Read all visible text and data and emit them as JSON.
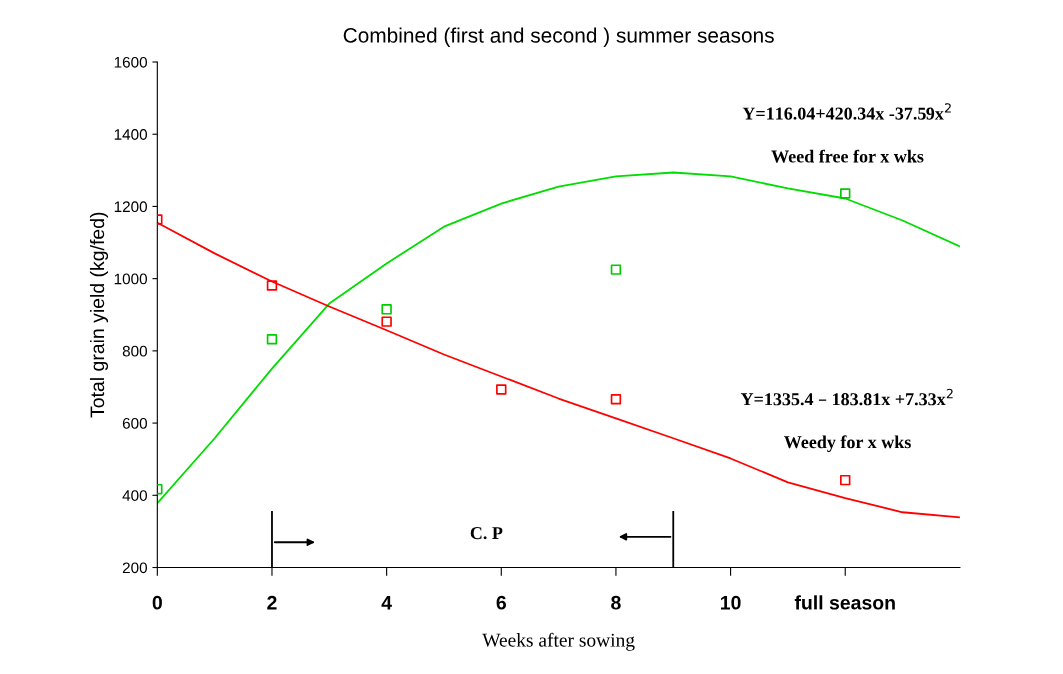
{
  "chart_data": {
    "type": "line",
    "title": "Combined (first and second ) summer seasons",
    "xlabel": "Weeks after sowing",
    "ylabel": "Total grain yield (kg/fed)",
    "xlim": [
      0,
      14
    ],
    "ylim": [
      200,
      1600
    ],
    "xticks": [
      0,
      2,
      4,
      6,
      8,
      10,
      {
        "value": 12,
        "label": "full season"
      }
    ],
    "yticks": [
      200,
      400,
      600,
      800,
      1000,
      1200,
      1400,
      1600
    ],
    "grid": false,
    "legend": false,
    "series": [
      {
        "type": "scatter",
        "color": "#00cc00",
        "marker": "square",
        "x": [
          0,
          2,
          4,
          8,
          12
        ],
        "values": [
          417,
          832,
          915,
          1025,
          1236
        ]
      },
      {
        "type": "scatter",
        "color": "#ff0000",
        "marker": "square",
        "x": [
          0,
          2,
          4,
          6,
          8,
          12
        ],
        "values": [
          1164,
          981,
          881,
          693,
          666,
          442
        ]
      },
      {
        "color": "#00dd00",
        "x": [
          0,
          1,
          2,
          3,
          4,
          5,
          6,
          7,
          8,
          9,
          10,
          11,
          12,
          13,
          14
        ],
        "values": [
          378,
          558,
          751,
          931,
          1042,
          1144,
          1208,
          1255,
          1283,
          1294,
          1283,
          1250,
          1222,
          1161,
          1089
        ]
      },
      {
        "color": "#ff0000",
        "x": [
          0,
          1,
          2,
          3,
          4,
          5,
          6,
          7,
          8,
          9,
          10,
          11,
          12,
          13,
          14
        ],
        "values": [
          1155,
          1070,
          992,
          923,
          857,
          790,
          729,
          668,
          613,
          558,
          502,
          436,
          392,
          353,
          339
        ]
      }
    ],
    "ref_lines": [
      {
        "axis": "x",
        "value": 2,
        "label": null
      },
      {
        "axis": "x",
        "value": 9,
        "label": null
      }
    ],
    "annotations": [
      "Y=116.04+420.34x -37.59x$^{2}$",
      "Weed free for x wks",
      "Y=1335.4 – 183.81x +7.33x$^{2}$",
      "Weedy for x wks",
      "C. P"
    ]
  }
}
